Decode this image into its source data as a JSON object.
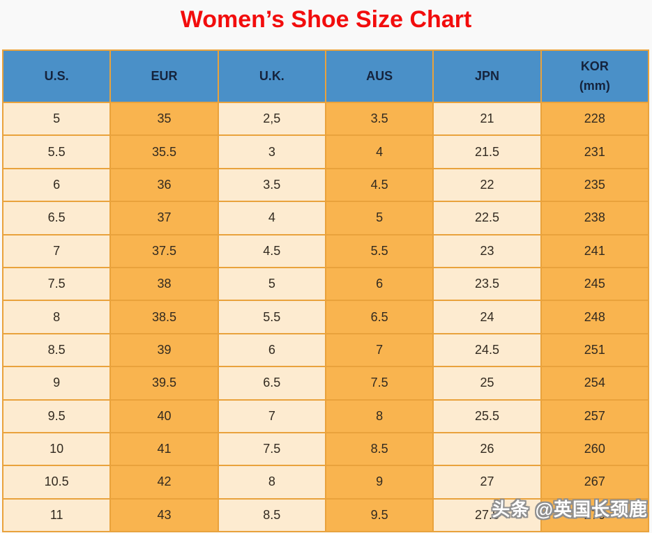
{
  "watermark": {
    "text": "头条 @英国长颈鹿"
  },
  "colors": {
    "page_background": "#f9f9f9",
    "title_red": "#f20d0d",
    "header_blue": "#4a90c8",
    "header_text": "#15233c",
    "cell_light": "#fdebd0",
    "cell_orange": "#f9b44f",
    "border_orange": "#e9a23c",
    "cell_text": "#322a20",
    "watermark_fill": "#ffffff",
    "watermark_outline": "#8f8f8f"
  },
  "table": {
    "headers": [
      {
        "id": "us",
        "label": "U.S.",
        "sub": ""
      },
      {
        "id": "eur",
        "label": "EUR",
        "sub": ""
      },
      {
        "id": "uk",
        "label": "U.K.",
        "sub": ""
      },
      {
        "id": "aus",
        "label": "AUS",
        "sub": ""
      },
      {
        "id": "jpn",
        "label": "JPN",
        "sub": ""
      },
      {
        "id": "kor",
        "label": "KOR",
        "sub": "(mm)"
      }
    ]
  },
  "chart_data": {
    "type": "table",
    "title": "Women’s Shoe Size Chart",
    "columns": [
      "U.S.",
      "EUR",
      "U.K.",
      "AUS",
      "JPN",
      "KOR (mm)"
    ],
    "rows": [
      [
        "5",
        "35",
        "2,5",
        "3.5",
        "21",
        "228"
      ],
      [
        "5.5",
        "35.5",
        "3",
        "4",
        "21.5",
        "231"
      ],
      [
        "6",
        "36",
        "3.5",
        "4.5",
        "22",
        "235"
      ],
      [
        "6.5",
        "37",
        "4",
        "5",
        "22.5",
        "238"
      ],
      [
        "7",
        "37.5",
        "4.5",
        "5.5",
        "23",
        "241"
      ],
      [
        "7.5",
        "38",
        "5",
        "6",
        "23.5",
        "245"
      ],
      [
        "8",
        "38.5",
        "5.5",
        "6.5",
        "24",
        "248"
      ],
      [
        "8.5",
        "39",
        "6",
        "7",
        "24.5",
        "251"
      ],
      [
        "9",
        "39.5",
        "6.5",
        "7.5",
        "25",
        "254"
      ],
      [
        "9.5",
        "40",
        "7",
        "8",
        "25.5",
        "257"
      ],
      [
        "10",
        "41",
        "7.5",
        "8.5",
        "26",
        "260"
      ],
      [
        "10.5",
        "42",
        "8",
        "9",
        "27",
        "267"
      ],
      [
        "11",
        "43",
        "8.5",
        "9.5",
        "27.8",
        "270"
      ]
    ]
  }
}
